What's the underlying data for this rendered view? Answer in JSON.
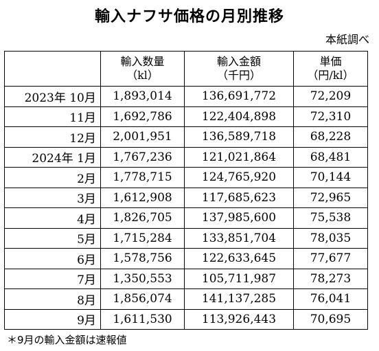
{
  "title": "輸入ナフサ価格の月別推移",
  "source": "本紙調べ",
  "headers": [
    {
      "line1": "",
      "line2": ""
    },
    {
      "line1": "輸入数量",
      "line2": "（kl）"
    },
    {
      "line1": "輸入金額",
      "line2": "（千円）"
    },
    {
      "line1": "単価",
      "line2": "（円/kl）"
    }
  ],
  "rows": [
    {
      "period": "2023年 10月",
      "volume": "1,893,014",
      "amount": "136,691,772",
      "unit_price": "72,209"
    },
    {
      "period": "11月",
      "volume": "1,692,786",
      "amount": "122,404,898",
      "unit_price": "72,310"
    },
    {
      "period": "12月",
      "volume": "2,001,951",
      "amount": "136,589,718",
      "unit_price": "68,228"
    },
    {
      "period": "2024年 1月",
      "volume": "1,767,236",
      "amount": "121,021,864",
      "unit_price": "68,481"
    },
    {
      "period": "2月",
      "volume": "1,778,715",
      "amount": "124,765,920",
      "unit_price": "70,144"
    },
    {
      "period": "3月",
      "volume": "1,612,908",
      "amount": "117,685,623",
      "unit_price": "72,965"
    },
    {
      "period": "4月",
      "volume": "1,826,705",
      "amount": "137,985,600",
      "unit_price": "75,538"
    },
    {
      "period": "5月",
      "volume": "1,715,284",
      "amount": "133,851,704",
      "unit_price": "78,035"
    },
    {
      "period": "6月",
      "volume": "1,578,756",
      "amount": "122,633,645",
      "unit_price": "77,677"
    },
    {
      "period": "7月",
      "volume": "1,350,553",
      "amount": "105,711,987",
      "unit_price": "78,273"
    },
    {
      "period": "8月",
      "volume": "1,856,074",
      "amount": "141,137,285",
      "unit_price": "76,041"
    },
    {
      "period": "9月",
      "volume": "1,611,530",
      "amount": "113,926,443",
      "unit_price": "70,695"
    }
  ],
  "note": "＊9月の輸入金額は速報値"
}
